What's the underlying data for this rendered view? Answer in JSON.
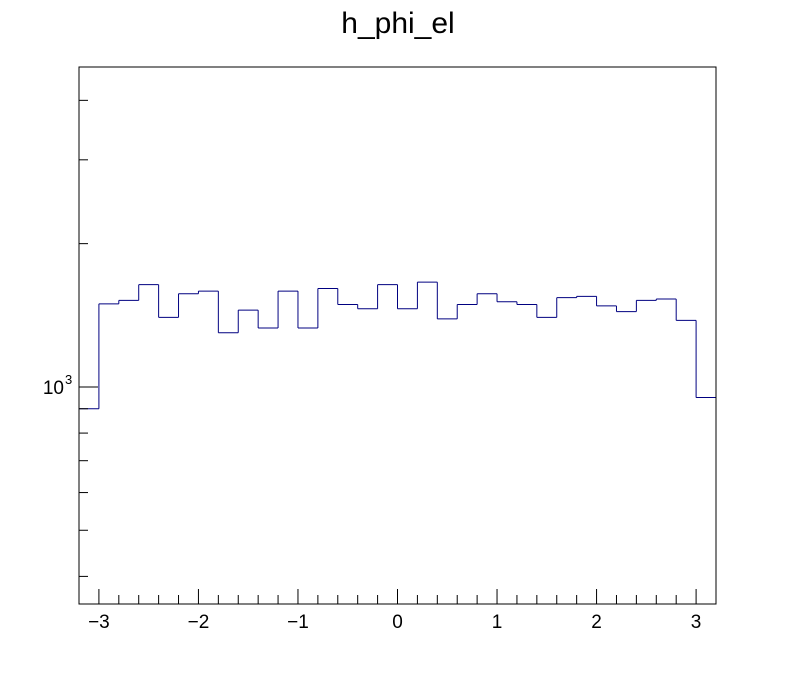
{
  "chart_data": {
    "type": "histogram",
    "title": "h_phi_el",
    "xlabel": "",
    "ylabel": "",
    "xlim": [
      -3.2,
      3.2
    ],
    "ylim": [
      350,
      4700
    ],
    "y_scale": "log",
    "grid": false,
    "legend": "none",
    "line_color": "#000080",
    "bin_edges": [
      -3.2,
      -3.0,
      -2.8,
      -2.6,
      -2.4,
      -2.2,
      -2.0,
      -1.8,
      -1.6,
      -1.4,
      -1.2,
      -1.0,
      -0.8,
      -0.6,
      -0.4,
      -0.2,
      0.0,
      0.2,
      0.4,
      0.6,
      0.8,
      1.0,
      1.2,
      1.4,
      1.6,
      1.8,
      2.0,
      2.2,
      2.4,
      2.6,
      2.8,
      3.0,
      3.2
    ],
    "values": [
      900,
      1495,
      1520,
      1640,
      1400,
      1570,
      1590,
      1300,
      1450,
      1330,
      1590,
      1330,
      1610,
      1490,
      1460,
      1640,
      1460,
      1660,
      1390,
      1490,
      1570,
      1510,
      1490,
      1400,
      1540,
      1550,
      1480,
      1440,
      1520,
      1530,
      1380,
      950
    ],
    "x_ticks": [
      -3,
      -2,
      -1,
      0,
      1,
      2,
      3
    ],
    "x_tick_labels": [
      "−3",
      "−2",
      "−1",
      "0",
      "1",
      "2",
      "3"
    ],
    "y_major_ticks": [
      1000
    ],
    "y_major_tick_labels": [
      {
        "base": "10",
        "exp": "3"
      }
    ],
    "y_minor_ticks": [
      400,
      500,
      600,
      700,
      800,
      900,
      2000,
      3000,
      4000
    ]
  }
}
